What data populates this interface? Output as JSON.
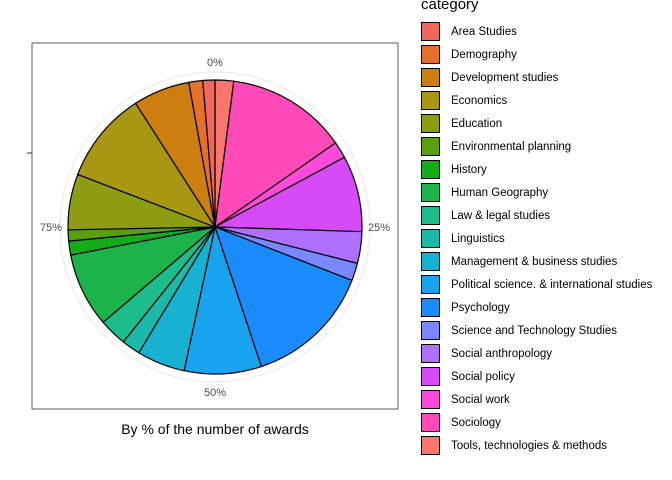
{
  "chart_data": {
    "type": "pie",
    "xlabel": "By % of the number of awards",
    "angle_ticks": [
      "0%",
      "25%",
      "50%",
      "75%"
    ],
    "legend_title": "category",
    "legend_position": "right",
    "grid": true,
    "slices": [
      {
        "name": "Tools, technologies & methods",
        "value": 2.0,
        "color": "#F8766D"
      },
      {
        "name": "Sociology",
        "value": 13.0,
        "color": "#FF4AB8"
      },
      {
        "name": "Social work",
        "value": 1.8,
        "color": "#FF4AD9"
      },
      {
        "name": "Social policy",
        "value": 8.2,
        "color": "#D74AF8"
      },
      {
        "name": "Social anthropology",
        "value": 3.4,
        "color": "#B070FF"
      },
      {
        "name": "Science and Technology Studies",
        "value": 1.9,
        "color": "#7A88FF"
      },
      {
        "name": "Psychology",
        "value": 13.7,
        "color": "#1A8CFF"
      },
      {
        "name": "Political science. & international studies",
        "value": 8.3,
        "color": "#1AA3EF"
      },
      {
        "name": "Management & business studies",
        "value": 5.2,
        "color": "#19B1D1"
      },
      {
        "name": "Linguistics",
        "value": 2.0,
        "color": "#1CB9A8"
      },
      {
        "name": "Law & legal studies",
        "value": 3.0,
        "color": "#1CBD8A"
      },
      {
        "name": "Human Geography",
        "value": 8.0,
        "color": "#1CB44A"
      },
      {
        "name": "History",
        "value": 1.5,
        "color": "#15AC1A"
      },
      {
        "name": "Environmental planning",
        "value": 1.2,
        "color": "#5B9E0E"
      },
      {
        "name": "Education",
        "value": 6.0,
        "color": "#8E9C12"
      },
      {
        "name": "Economics",
        "value": 9.9,
        "color": "#A79712"
      },
      {
        "name": "Development studies",
        "value": 6.1,
        "color": "#CC7F10"
      },
      {
        "name": "Demography",
        "value": 1.5,
        "color": "#E5702B"
      },
      {
        "name": "Area Studies",
        "value": 1.3,
        "color": "#F0675C"
      }
    ]
  }
}
